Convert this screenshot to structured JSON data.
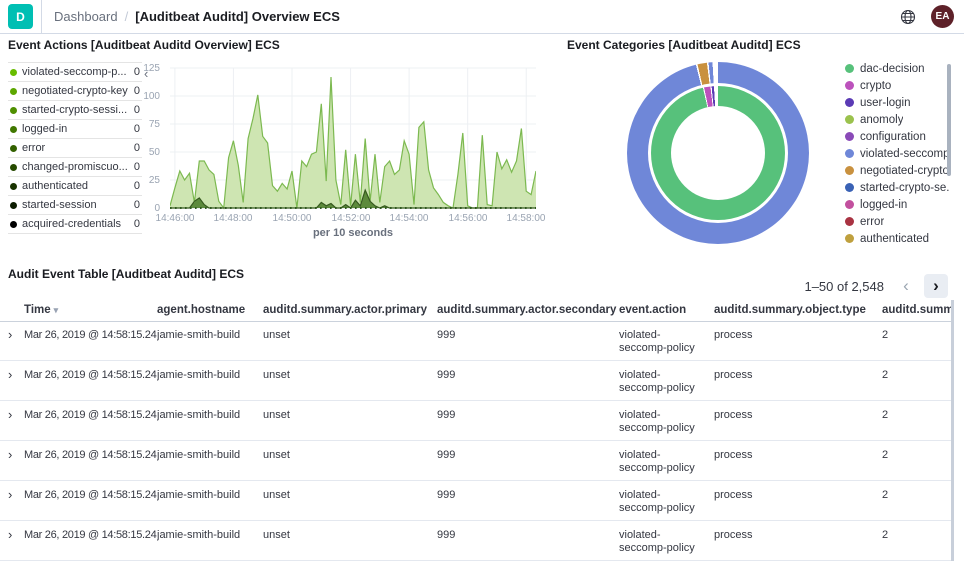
{
  "header": {
    "logo_letter": "D",
    "breadcrumb": "Dashboard",
    "separator": "/",
    "page_title": "[Auditbeat Auditd] Overview ECS",
    "avatar_initials": "EA"
  },
  "icons": {
    "collapse_legend": "‹",
    "prev": "‹",
    "next": "›",
    "expand_row": "›",
    "sort_desc": "▾",
    "globe": "globe-icon"
  },
  "panels": {
    "event_actions": {
      "title": "Event Actions [Auditbeat Auditd Overview] ECS",
      "legend": [
        {
          "label": "violated-seccomp-p...",
          "value": "0",
          "color": "#68BC00"
        },
        {
          "label": "negotiated-crypto-key",
          "value": "0",
          "color": "#5DA700"
        },
        {
          "label": "started-crypto-sessi...",
          "value": "0",
          "color": "#4F8F00"
        },
        {
          "label": "logged-in",
          "value": "0",
          "color": "#417800"
        },
        {
          "label": "error",
          "value": "0",
          "color": "#336100"
        },
        {
          "label": "changed-promiscuo...",
          "value": "0",
          "color": "#264A00"
        },
        {
          "label": "authenticated",
          "value": "0",
          "color": "#193300"
        },
        {
          "label": "started-session",
          "value": "0",
          "color": "#0C1C00"
        },
        {
          "label": "acquired-credentials",
          "value": "0",
          "color": "#000000"
        }
      ]
    },
    "event_categories": {
      "title": "Event Categories [Auditbeat Auditd] ECS",
      "legend": [
        {
          "label": "dac-decision",
          "color": "#57C17B"
        },
        {
          "label": "crypto",
          "color": "#BC52BC"
        },
        {
          "label": "user-login",
          "color": "#5B3BB5"
        },
        {
          "label": "anomoly",
          "color": "#9BC24D"
        },
        {
          "label": "configuration",
          "color": "#8A4AB8"
        },
        {
          "label": "violated-seccomp...",
          "color": "#6F87D8"
        },
        {
          "label": "negotiated-crypto...",
          "color": "#C9913F"
        },
        {
          "label": "started-crypto-se...",
          "color": "#3A62B5"
        },
        {
          "label": "logged-in",
          "color": "#C2509E"
        },
        {
          "label": "error",
          "color": "#A93342"
        },
        {
          "label": "authenticated",
          "color": "#BFA03E"
        }
      ]
    },
    "audit_table": {
      "title": "Audit Event Table [Auditbeat Auditd] ECS",
      "pagination": "1–50 of 2,548",
      "columns": [
        "Time",
        "agent.hostname",
        "auditd.summary.actor.primary",
        "auditd.summary.actor.secondary",
        "event.action",
        "auditd.summary.object.type",
        "auditd.summary"
      ],
      "rows": [
        {
          "time": "Mar 26, 2019 @ 14:58:15.245",
          "hostname": "jamie-smith-build",
          "primary": "unset",
          "secondary": "999",
          "action": "violated-seccomp-policy",
          "object_type": "process",
          "summary": "2"
        },
        {
          "time": "Mar 26, 2019 @ 14:58:15.245",
          "hostname": "jamie-smith-build",
          "primary": "unset",
          "secondary": "999",
          "action": "violated-seccomp-policy",
          "object_type": "process",
          "summary": "2"
        },
        {
          "time": "Mar 26, 2019 @ 14:58:15.245",
          "hostname": "jamie-smith-build",
          "primary": "unset",
          "secondary": "999",
          "action": "violated-seccomp-policy",
          "object_type": "process",
          "summary": "2"
        },
        {
          "time": "Mar 26, 2019 @ 14:58:15.245",
          "hostname": "jamie-smith-build",
          "primary": "unset",
          "secondary": "999",
          "action": "violated-seccomp-policy",
          "object_type": "process",
          "summary": "2"
        },
        {
          "time": "Mar 26, 2019 @ 14:58:15.245",
          "hostname": "jamie-smith-build",
          "primary": "unset",
          "secondary": "999",
          "action": "violated-seccomp-policy",
          "object_type": "process",
          "summary": "2"
        },
        {
          "time": "Mar 26, 2019 @ 14:58:15.245",
          "hostname": "jamie-smith-build",
          "primary": "unset",
          "secondary": "999",
          "action": "violated-seccomp-policy",
          "object_type": "process",
          "summary": "2"
        }
      ]
    }
  },
  "chart_data": [
    {
      "type": "area",
      "title": "Event Actions [Auditbeat Auditd Overview] ECS",
      "xlabel": "per 10 seconds",
      "ylim": [
        0,
        125
      ],
      "yticks": [
        0,
        25,
        50,
        75,
        100,
        125
      ],
      "xticks": [
        "14:46:00",
        "14:48:00",
        "14:50:00",
        "14:52:00",
        "14:54:00",
        "14:56:00",
        "14:58:00"
      ],
      "tick_indices": [
        1,
        13,
        25,
        37,
        49,
        61,
        73
      ],
      "x_start": "14:45:50",
      "x_interval_seconds": 10,
      "grid": true,
      "legend_position": "left",
      "series": [
        {
          "name": "violated-seccomp-policy",
          "line_color": "#7CB950",
          "fill_color": "#CEE5B2",
          "values": [
            2,
            18,
            33,
            25,
            31,
            5,
            42,
            42,
            34,
            30,
            6,
            0,
            45,
            60,
            38,
            5,
            62,
            80,
            101,
            64,
            58,
            20,
            15,
            22,
            17,
            33,
            0,
            42,
            37,
            48,
            50,
            93,
            24,
            117,
            25,
            3,
            52,
            2,
            48,
            5,
            62,
            6,
            48,
            5,
            37,
            42,
            30,
            34,
            60,
            48,
            3,
            72,
            77,
            34,
            18,
            12,
            5,
            2,
            0,
            30,
            67,
            2,
            0,
            0,
            65,
            3,
            2,
            50,
            35,
            43,
            32,
            42,
            71,
            15,
            12,
            33
          ]
        },
        {
          "name": "logged-in",
          "line_color": "#36591F",
          "fill_color": "#5C8A3C",
          "values": [
            0,
            0,
            0,
            0,
            0,
            6,
            9,
            3,
            0,
            0,
            0,
            0,
            0,
            0,
            0,
            0,
            0,
            0,
            0,
            0,
            0,
            0,
            0,
            0,
            0,
            0,
            0,
            0,
            0,
            0,
            0,
            5,
            2,
            4,
            0,
            0,
            3,
            0,
            7,
            2,
            16,
            6,
            2,
            0,
            2,
            0,
            0,
            0,
            0,
            0,
            0,
            0,
            0,
            0,
            0,
            0,
            0,
            0,
            0,
            0,
            0,
            0,
            0,
            0,
            0,
            0,
            0,
            0,
            0,
            0,
            0,
            0,
            0,
            0,
            0,
            0
          ]
        }
      ]
    },
    {
      "type": "pie",
      "title": "Event Categories [Auditbeat Auditd] ECS",
      "donut": true,
      "legend_position": "right",
      "rings": {
        "inner": [
          {
            "label": "dac-decision",
            "deg": 347,
            "color": "#57C17B"
          },
          {
            "label": "",
            "deg": 1,
            "color": "#FFFFFF"
          },
          {
            "label": "crypto",
            "deg": 5.5,
            "color": "#BC52BC"
          },
          {
            "label": "",
            "deg": 1,
            "color": "#FFFFFF"
          },
          {
            "label": "user-login",
            "deg": 2,
            "color": "#5B3BB5"
          },
          {
            "label": "",
            "deg": 3.5,
            "color": "#FFFFFF"
          }
        ],
        "outer": [
          {
            "label": "violated-seccomp-policy",
            "deg": 346,
            "color": "#6F87D8"
          },
          {
            "label": "",
            "deg": 1,
            "color": "#FFFFFF"
          },
          {
            "label": "negotiated-crypto-key",
            "deg": 6,
            "color": "#C9913F"
          },
          {
            "label": "",
            "deg": 1,
            "color": "#FFFFFF"
          },
          {
            "label": "started-crypto-session",
            "deg": 2.5,
            "color": "#6F87D8"
          },
          {
            "label": "",
            "deg": 3.5,
            "color": "#FFFFFF"
          }
        ]
      }
    }
  ]
}
